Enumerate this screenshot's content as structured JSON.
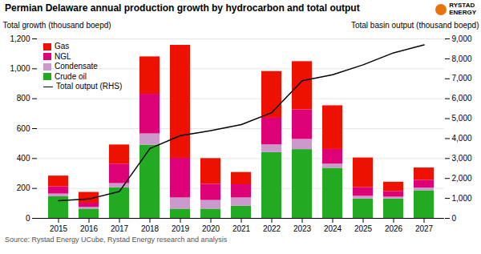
{
  "chart_data": {
    "type": "bar",
    "stacked": true,
    "title": "Permian Delaware annual production growth by hydrocarbon and total output",
    "ylabel": "Total growth (thousand boepd)",
    "y2label": "Total basin output (thousand boepd)",
    "annotations": [
      "Source: Rystad Energy UCube, Rystad Energy research and analysis",
      "RYSTAD",
      "ENERGY"
    ],
    "categories": [
      "2015",
      "2016",
      "2017",
      "2018",
      "2019",
      "2020",
      "2021",
      "2022",
      "2023",
      "2024",
      "2025",
      "2026",
      "2027"
    ],
    "series": [
      {
        "name": "Crude oil",
        "type": "bar",
        "color": "#22AA22",
        "values": [
          145,
          62,
          205,
          490,
          62,
          62,
          82,
          440,
          460,
          335,
          130,
          130,
          185
        ]
      },
      {
        "name": "Condensate",
        "type": "bar",
        "color": "#CC99CC",
        "values": [
          18,
          12,
          28,
          75,
          75,
          58,
          55,
          52,
          68,
          28,
          18,
          12,
          18
        ]
      },
      {
        "name": "NGL",
        "type": "bar",
        "color": "#DD0077",
        "values": [
          48,
          28,
          130,
          265,
          265,
          108,
          88,
          178,
          198,
          98,
          58,
          38,
          52
        ]
      },
      {
        "name": "Gas",
        "type": "bar",
        "color": "#EE1100",
        "values": [
          72,
          72,
          128,
          250,
          755,
          172,
          82,
          312,
          322,
          292,
          198,
          62,
          82
        ]
      },
      {
        "name": "Total output (RHS)",
        "type": "line",
        "axis": "y2",
        "color": "#000000",
        "values": [
          880,
          970,
          1350,
          3500,
          4150,
          4400,
          4700,
          5300,
          6900,
          7200,
          7700,
          8300,
          8700
        ]
      }
    ],
    "ylim": [
      0,
      1200
    ],
    "yticks": [
      0,
      200,
      400,
      600,
      800,
      {
        "value": 1000,
        "label": "1,000"
      },
      {
        "value": 1200,
        "label": "1,200"
      }
    ],
    "y2lim": [
      0,
      9000
    ],
    "y2ticks": [
      0,
      {
        "value": 1000,
        "label": "1,000"
      },
      {
        "value": 2000,
        "label": "2,000"
      },
      {
        "value": 3000,
        "label": "3,000"
      },
      {
        "value": 4000,
        "label": "4,000"
      },
      {
        "value": 5000,
        "label": "5,000"
      },
      {
        "value": 6000,
        "label": "6,000"
      },
      {
        "value": 7000,
        "label": "7,000"
      },
      {
        "value": 8000,
        "label": "8,000"
      },
      {
        "value": 9000,
        "label": "9,000"
      }
    ],
    "grid": true,
    "legend": "upper left"
  }
}
